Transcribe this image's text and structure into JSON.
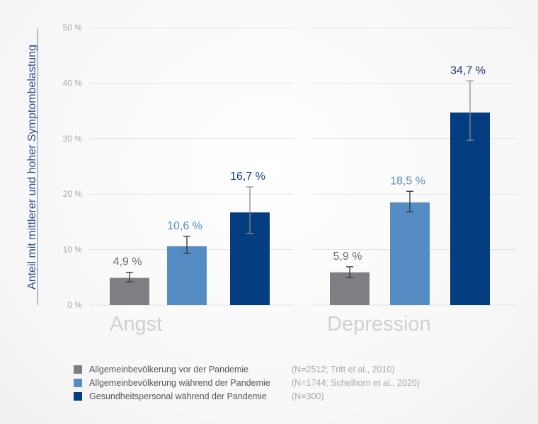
{
  "chart_data": {
    "type": "bar",
    "ylabel": "Anteil mit mittlerer und hoher Symptombelastung",
    "ylim": [
      0,
      50
    ],
    "yticks": [
      "0 %",
      "10 %",
      "20 %",
      "30 %",
      "40 %",
      "50 %"
    ],
    "ytick_values": [
      0,
      10,
      20,
      30,
      40,
      50
    ],
    "grid": true,
    "legend_position": "bottom",
    "categories": [
      "Angst",
      "Depression"
    ],
    "series": [
      {
        "name": "Allgemeinbevölkerung vor der Pandemie",
        "source": "(N=2512; Tritt et al., 2010)",
        "color": "#7f7f83",
        "label_color": "#6d6d6d",
        "values": [
          4.9,
          5.9
        ],
        "labels": [
          "4,9 %",
          "5,9 %"
        ],
        "error_low": [
          4.2,
          5.0
        ],
        "error_high": [
          5.9,
          6.9
        ]
      },
      {
        "name": "Allgemeinbevölkerung während der Pandemie",
        "source": "(N=1744; Schelhorn et al., 2020)",
        "color": "#548cc3",
        "label_color": "#5a8dc0",
        "values": [
          10.6,
          18.5
        ],
        "labels": [
          "10,6 %",
          "18,5 %"
        ],
        "error_low": [
          9.3,
          16.8
        ],
        "error_high": [
          12.4,
          20.5
        ]
      },
      {
        "name": "Gesundheitspersonal während der Pandemie",
        "source": "(N=300)",
        "color": "#043e80",
        "label_color": "#1a3a6e",
        "values": [
          16.7,
          34.7
        ],
        "labels": [
          "16,7 %",
          "34,7 %"
        ],
        "error_low": [
          12.9,
          29.7
        ],
        "error_high": [
          21.3,
          40.4
        ]
      }
    ]
  }
}
